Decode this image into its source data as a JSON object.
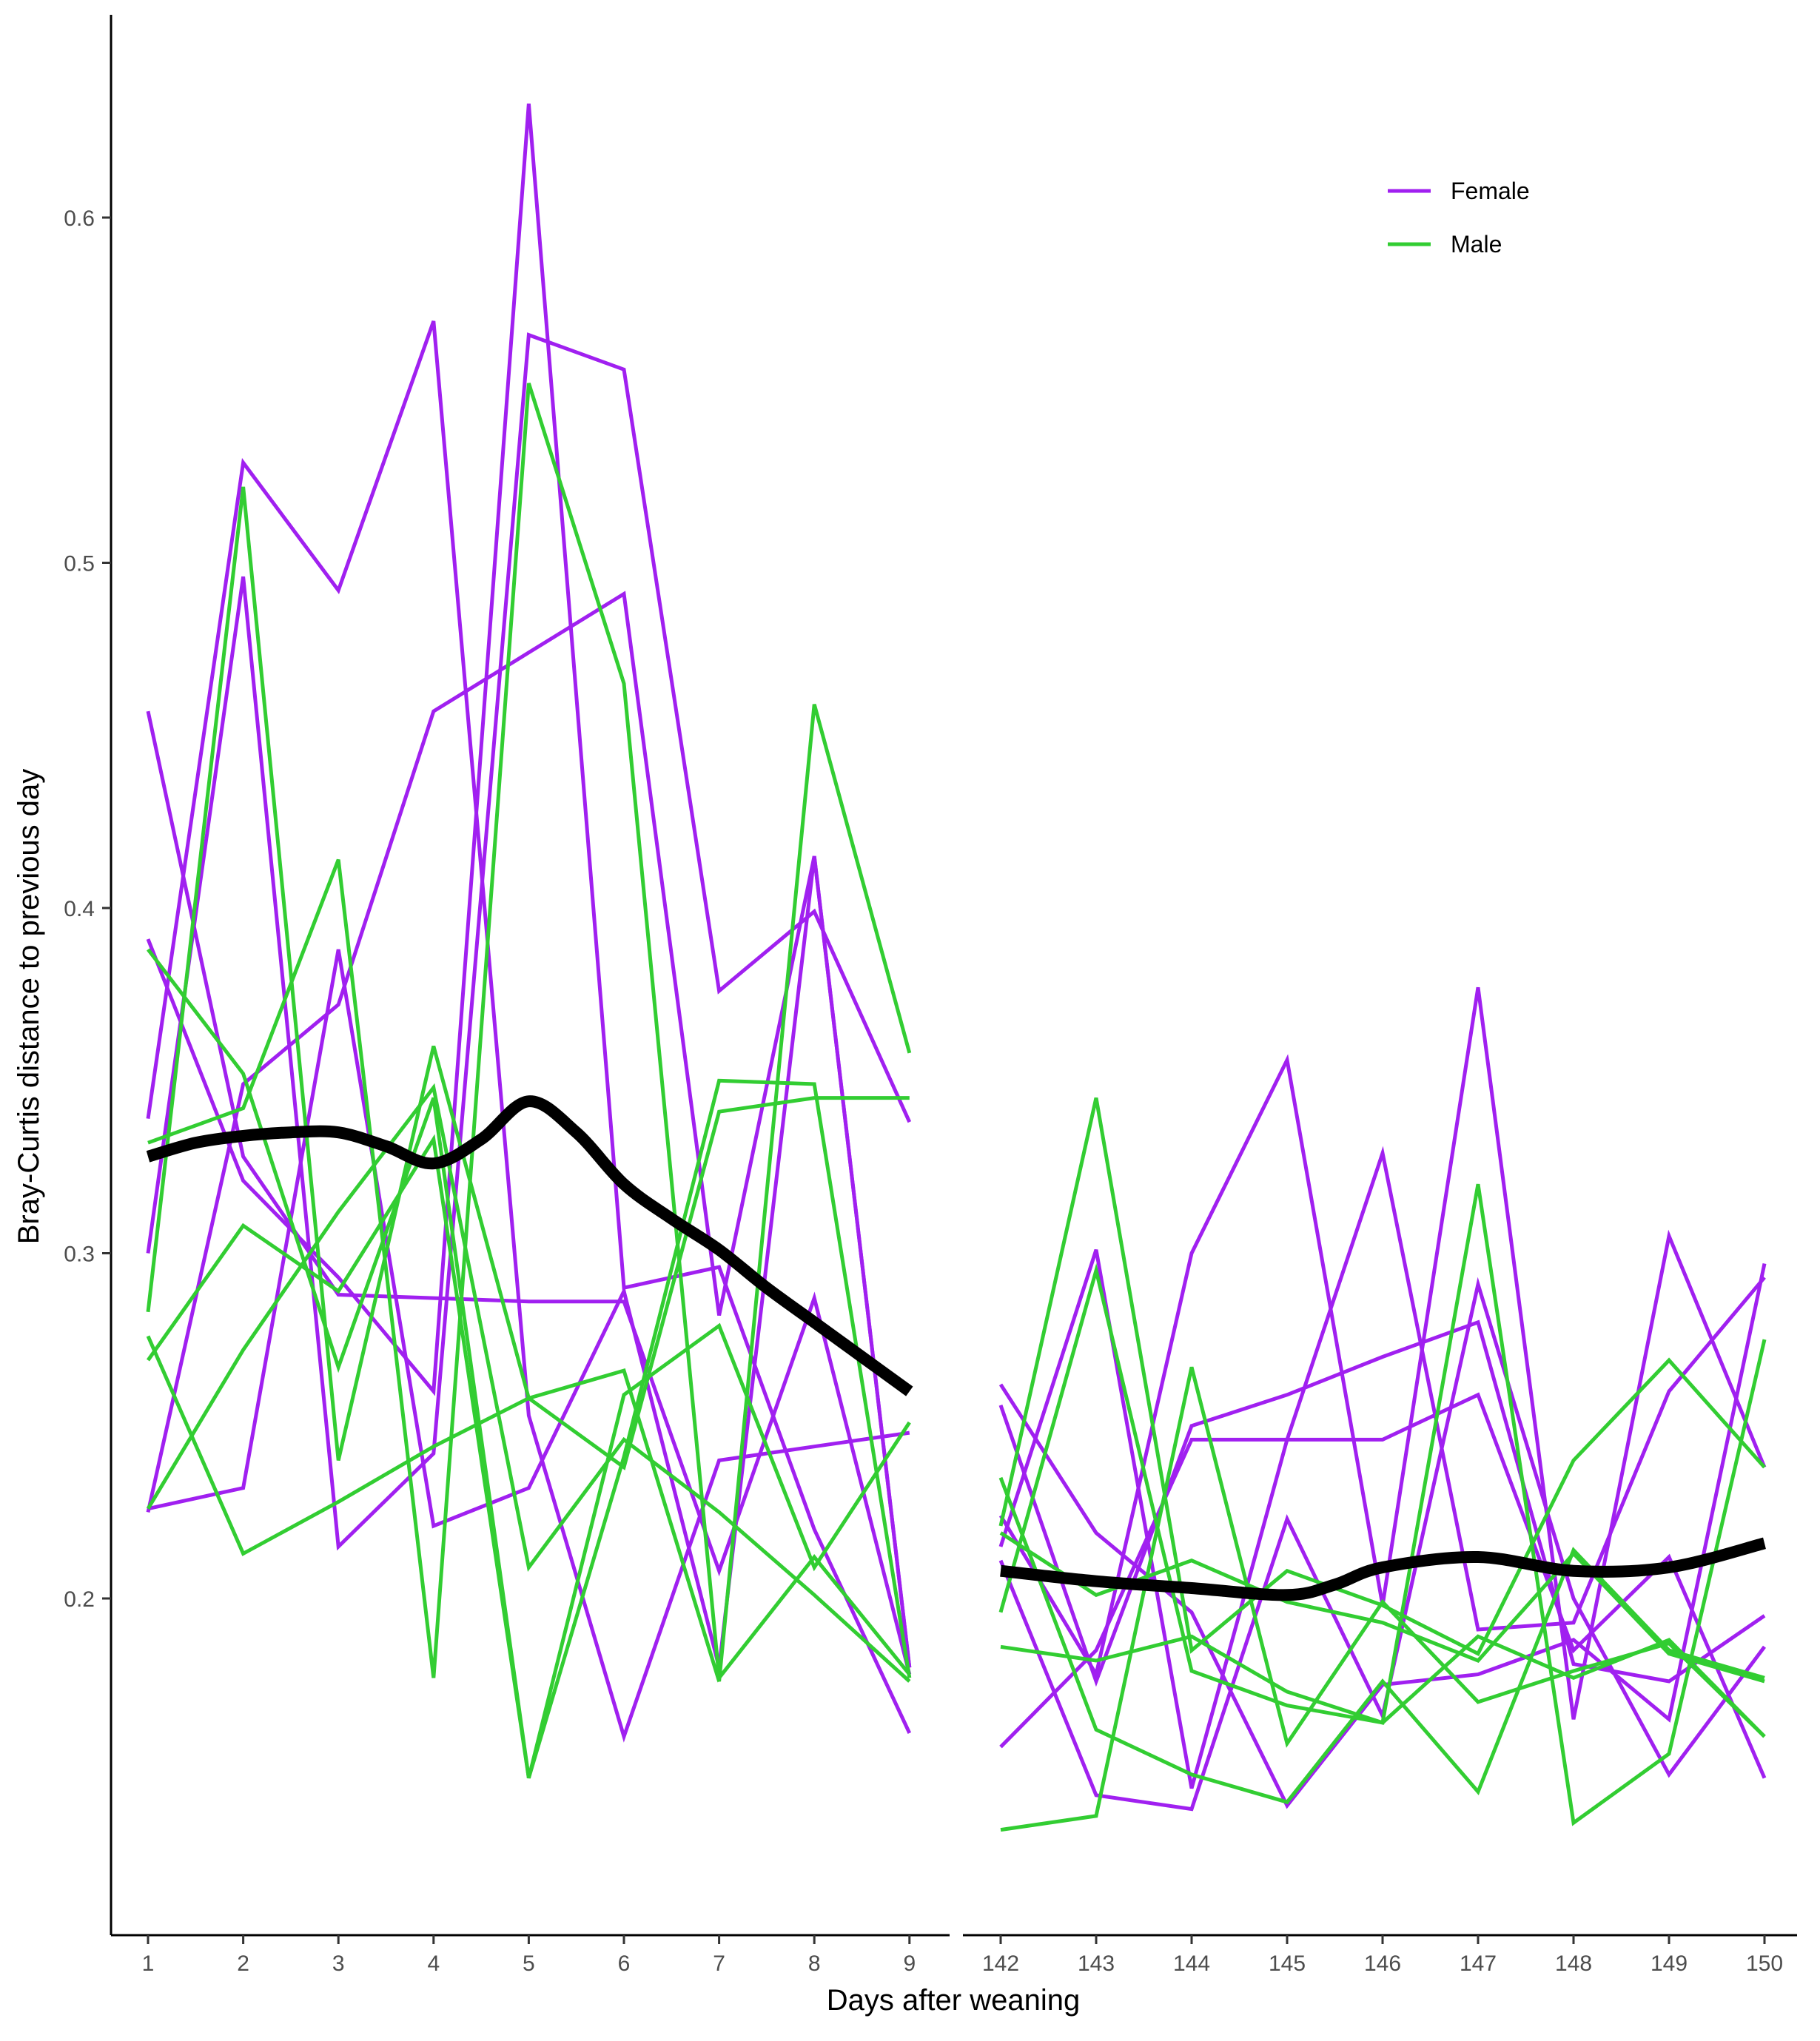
{
  "colors": {
    "Female": "#a020f0",
    "Male": "#32cd32",
    "trend": "#000000"
  },
  "chart_data": {
    "type": "line",
    "xlabel": "Days after weaning",
    "ylabel": "Bray-Curtis distance to previous day",
    "ylim": [
      0.13,
      0.66
    ],
    "y_ticks": [
      0.2,
      0.3,
      0.4,
      0.5,
      0.6
    ],
    "y_tick_labels": [
      "0.2",
      "0.3",
      "0.4",
      "0.5",
      "0.6"
    ],
    "grid": false,
    "legend": {
      "placement": "top-right",
      "entries": [
        "Female",
        "Male"
      ]
    },
    "panels": [
      {
        "x": [
          1,
          2,
          3,
          4,
          5,
          6,
          7,
          8,
          9
        ],
        "x_tick_labels": [
          "1",
          "2",
          "3",
          "4",
          "5",
          "6",
          "7",
          "8",
          "9"
        ]
      },
      {
        "x": [
          142,
          143,
          144,
          145,
          146,
          147,
          148,
          149,
          150
        ],
        "x_tick_labels": [
          "142",
          "143",
          "144",
          "145",
          "146",
          "147",
          "148",
          "149",
          "150"
        ]
      }
    ],
    "series": [
      {
        "sex": "Female",
        "panel": 0,
        "x": [
          1,
          2,
          3,
          4,
          5,
          6,
          7,
          8,
          9
        ],
        "y": [
          0.457,
          0.328,
          0.288,
          0.287,
          0.286,
          0.286,
          0.208,
          0.287,
          0.178
        ]
      },
      {
        "sex": "Female",
        "panel": 0,
        "x": [
          1,
          2,
          3,
          4,
          5,
          6,
          7,
          8,
          9
        ],
        "y": [
          0.391,
          0.321,
          0.293,
          0.26,
          0.633,
          0.29,
          0.296,
          0.22,
          0.161
        ]
      },
      {
        "sex": "Female",
        "panel": 0,
        "x": [
          1,
          2,
          3,
          4,
          5,
          6,
          7,
          8,
          9
        ],
        "y": [
          0.339,
          0.529,
          0.492,
          0.57,
          0.253,
          0.16,
          0.24,
          0.244,
          0.248
        ]
      },
      {
        "sex": "Female",
        "panel": 0,
        "x": [
          1,
          2,
          3,
          4,
          5,
          6,
          7,
          8,
          9
        ],
        "y": [
          0.3,
          0.496,
          0.215,
          0.242,
          0.566,
          0.556,
          0.376,
          0.399,
          0.338
        ]
      },
      {
        "sex": "Female",
        "panel": 0,
        "x": [
          1,
          2,
          3,
          4,
          5,
          6,
          7,
          8,
          9
        ],
        "y": [
          0.225,
          0.349,
          0.372,
          0.457,
          0.474,
          0.491,
          0.282,
          0.415,
          0.18
        ]
      },
      {
        "sex": "Female",
        "panel": 0,
        "x": [
          1,
          2,
          3,
          4,
          5,
          6,
          7,
          8,
          9
        ],
        "y": [
          0.226,
          0.232,
          0.388,
          0.221,
          0.232,
          0.289,
          0.18,
          0.415,
          0.18
        ]
      },
      {
        "sex": "Male",
        "panel": 0,
        "x": [
          1,
          2,
          3,
          4,
          5,
          6,
          7,
          8,
          9
        ],
        "y": [
          0.388,
          0.352,
          0.267,
          0.345,
          0.148,
          0.241,
          0.35,
          0.349,
          0.177
        ]
      },
      {
        "sex": "Male",
        "panel": 0,
        "x": [
          1,
          2,
          3,
          4,
          5,
          6,
          7,
          8,
          9
        ],
        "y": [
          0.332,
          0.342,
          0.414,
          0.177,
          0.552,
          0.465,
          0.177,
          0.212,
          0.178
        ]
      },
      {
        "sex": "Male",
        "panel": 0,
        "x": [
          1,
          2,
          3,
          4,
          5,
          6,
          7,
          8,
          9
        ],
        "y": [
          0.283,
          0.522,
          0.24,
          0.36,
          0.258,
          0.266,
          0.176,
          0.459,
          0.358
        ]
      },
      {
        "sex": "Male",
        "panel": 0,
        "x": [
          1,
          2,
          3,
          4,
          5,
          6,
          7,
          8,
          9
        ],
        "y": [
          0.276,
          0.213,
          0.228,
          0.244,
          0.258,
          0.238,
          0.341,
          0.345,
          0.345
        ]
      },
      {
        "sex": "Male",
        "panel": 0,
        "x": [
          1,
          2,
          3,
          4,
          5,
          6,
          7,
          8,
          9
        ],
        "y": [
          0.269,
          0.308,
          0.289,
          0.333,
          0.148,
          0.259,
          0.279,
          0.209,
          0.251
        ]
      },
      {
        "sex": "Male",
        "panel": 0,
        "x": [
          1,
          2,
          3,
          4,
          5,
          6,
          7,
          8,
          9
        ],
        "y": [
          0.226,
          0.272,
          0.312,
          0.348,
          0.209,
          0.246,
          0.225,
          0.201,
          0.176
        ]
      },
      {
        "sex": "Female",
        "panel": 1,
        "x": [
          142,
          143,
          144,
          145,
          146,
          147,
          148,
          149,
          150
        ],
        "y": [
          0.262,
          0.219,
          0.196,
          0.14,
          0.175,
          0.178,
          0.188,
          0.165,
          0.297
        ]
      },
      {
        "sex": "Female",
        "panel": 1,
        "x": [
          142,
          143,
          144,
          145,
          146,
          147,
          148,
          149,
          150
        ],
        "y": [
          0.256,
          0.176,
          0.25,
          0.259,
          0.27,
          0.28,
          0.181,
          0.176,
          0.195
        ]
      },
      {
        "sex": "Female",
        "panel": 1,
        "x": [
          142,
          143,
          144,
          145,
          146,
          147,
          148,
          149,
          150
        ],
        "y": [
          0.224,
          0.178,
          0.3,
          0.356,
          0.198,
          0.377,
          0.165,
          0.305,
          0.238
        ]
      },
      {
        "sex": "Female",
        "panel": 1,
        "x": [
          142,
          143,
          144,
          145,
          146,
          147,
          148,
          149,
          150
        ],
        "y": [
          0.215,
          0.301,
          0.145,
          0.246,
          0.329,
          0.191,
          0.193,
          0.26,
          0.293
        ]
      },
      {
        "sex": "Female",
        "panel": 1,
        "x": [
          142,
          143,
          144,
          145,
          146,
          147,
          148,
          149,
          150
        ],
        "y": [
          0.211,
          0.143,
          0.139,
          0.223,
          0.166,
          0.291,
          0.2,
          0.149,
          0.186
        ]
      },
      {
        "sex": "Female",
        "panel": 1,
        "x": [
          142,
          143,
          144,
          145,
          146,
          147,
          148,
          149,
          150
        ],
        "y": [
          0.157,
          0.185,
          0.246,
          0.246,
          0.246,
          0.259,
          0.185,
          0.212,
          0.148
        ]
      },
      {
        "sex": "Male",
        "panel": 1,
        "x": [
          142,
          143,
          144,
          145,
          146,
          147,
          148,
          149,
          150
        ],
        "y": [
          0.235,
          0.162,
          0.149,
          0.141,
          0.176,
          0.144,
          0.214,
          0.185,
          0.177
        ]
      },
      {
        "sex": "Male",
        "panel": 1,
        "x": [
          142,
          143,
          144,
          145,
          146,
          147,
          148,
          149,
          150
        ],
        "y": [
          0.221,
          0.345,
          0.185,
          0.208,
          0.198,
          0.184,
          0.24,
          0.269,
          0.238
        ]
      },
      {
        "sex": "Male",
        "panel": 1,
        "x": [
          142,
          143,
          144,
          145,
          146,
          147,
          148,
          149,
          150
        ],
        "y": [
          0.196,
          0.295,
          0.179,
          0.169,
          0.164,
          0.32,
          0.135,
          0.155,
          0.275
        ]
      },
      {
        "sex": "Male",
        "panel": 1,
        "x": [
          142,
          143,
          144,
          145,
          146,
          147,
          148,
          149,
          150
        ],
        "y": [
          0.186,
          0.182,
          0.189,
          0.173,
          0.164,
          0.189,
          0.177,
          0.188,
          0.16
        ]
      },
      {
        "sex": "Male",
        "panel": 1,
        "x": [
          142,
          143,
          144,
          145,
          146,
          147,
          148,
          149,
          150
        ],
        "y": [
          0.133,
          0.137,
          0.267,
          0.158,
          0.199,
          0.17,
          0.179,
          0.187,
          0.16
        ]
      },
      {
        "sex": "Male",
        "panel": 1,
        "x": [
          142,
          143,
          144,
          145,
          146,
          147,
          148,
          149,
          150
        ],
        "y": [
          0.219,
          0.201,
          0.211,
          0.199,
          0.193,
          0.182,
          0.213,
          0.184,
          0.176
        ]
      }
    ],
    "trend": [
      {
        "panel": 0,
        "x": [
          1,
          1.5,
          2,
          2.5,
          3,
          3.5,
          4,
          4.5,
          5,
          5.5,
          6,
          6.5,
          7,
          7.5,
          8,
          8.5,
          9
        ],
        "y": [
          0.328,
          0.332,
          0.334,
          0.335,
          0.335,
          0.331,
          0.326,
          0.333,
          0.344,
          0.335,
          0.32,
          0.31,
          0.301,
          0.29,
          0.28,
          0.27,
          0.26
        ]
      },
      {
        "panel": 1,
        "x": [
          142,
          143,
          144,
          145,
          145.5,
          146,
          147,
          148,
          149,
          150
        ],
        "y": [
          0.208,
          0.205,
          0.203,
          0.201,
          0.204,
          0.209,
          0.212,
          0.208,
          0.209,
          0.216
        ]
      }
    ]
  }
}
